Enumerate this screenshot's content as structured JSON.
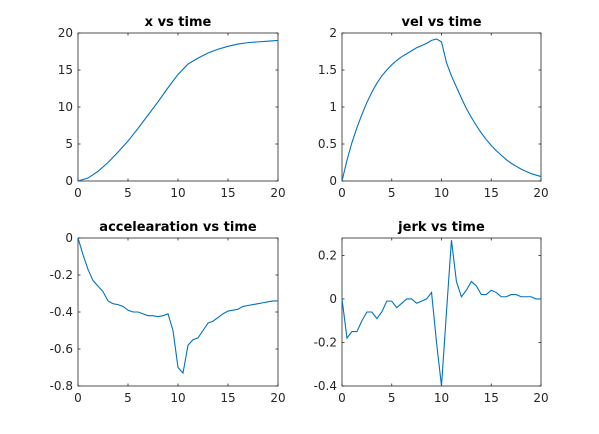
{
  "figure": {
    "background": "#ffffff"
  },
  "chart_data": [
    {
      "type": "line",
      "title": "x vs time",
      "xlabel": "",
      "ylabel": "",
      "xlim": [
        0,
        20
      ],
      "ylim": [
        0,
        20
      ],
      "xticks": [
        0,
        5,
        10,
        15,
        20
      ],
      "xtick_labels": [
        "0",
        "5",
        "10",
        "15",
        "20"
      ],
      "yticks": [
        0,
        5,
        10,
        15,
        20
      ],
      "ytick_labels": [
        "0",
        "5",
        "10",
        "15",
        "20"
      ],
      "grid": false,
      "color": "#0072bd",
      "series": [
        {
          "x": [
            0,
            1,
            2,
            3,
            4,
            5,
            6,
            7,
            8,
            9,
            10,
            11,
            12,
            13,
            14,
            15,
            16,
            17,
            18,
            19,
            20
          ],
          "y": [
            0,
            0.4,
            1.3,
            2.5,
            3.9,
            5.4,
            7.1,
            8.9,
            10.7,
            12.6,
            14.4,
            15.8,
            16.6,
            17.3,
            17.8,
            18.2,
            18.5,
            18.7,
            18.8,
            18.9,
            19.0
          ]
        }
      ]
    },
    {
      "type": "line",
      "title": "vel vs time",
      "xlabel": "",
      "ylabel": "",
      "xlim": [
        0,
        20
      ],
      "ylim": [
        0,
        2
      ],
      "xticks": [
        0,
        5,
        10,
        15,
        20
      ],
      "xtick_labels": [
        "0",
        "5",
        "10",
        "15",
        "20"
      ],
      "yticks": [
        0,
        0.5,
        1,
        1.5,
        2
      ],
      "ytick_labels": [
        "0",
        "0.5",
        "1",
        "1.5",
        "2"
      ],
      "grid": false,
      "color": "#0072bd",
      "series": [
        {
          "x": [
            0,
            0.5,
            1,
            1.5,
            2,
            2.5,
            3,
            3.5,
            4,
            4.5,
            5,
            5.5,
            6,
            6.5,
            7,
            7.5,
            8,
            8.5,
            9,
            9.5,
            10,
            10.5,
            11,
            11.5,
            12,
            12.5,
            13,
            13.5,
            14,
            14.5,
            15,
            15.5,
            16,
            16.5,
            17,
            17.5,
            18,
            18.5,
            19,
            19.5,
            20
          ],
          "y": [
            0,
            0.28,
            0.52,
            0.72,
            0.9,
            1.06,
            1.2,
            1.32,
            1.42,
            1.5,
            1.57,
            1.63,
            1.68,
            1.72,
            1.76,
            1.8,
            1.83,
            1.86,
            1.9,
            1.92,
            1.88,
            1.6,
            1.42,
            1.27,
            1.12,
            0.98,
            0.86,
            0.75,
            0.65,
            0.56,
            0.48,
            0.41,
            0.35,
            0.29,
            0.24,
            0.2,
            0.16,
            0.13,
            0.1,
            0.08,
            0.06
          ]
        }
      ]
    },
    {
      "type": "line",
      "title": "accelearation vs time",
      "xlabel": "",
      "ylabel": "",
      "xlim": [
        0,
        20
      ],
      "ylim": [
        -0.8,
        0
      ],
      "xticks": [
        0,
        5,
        10,
        15,
        20
      ],
      "xtick_labels": [
        "0",
        "5",
        "10",
        "15",
        "20"
      ],
      "yticks": [
        -0.8,
        -0.6,
        -0.4,
        -0.2,
        0
      ],
      "ytick_labels": [
        "-0.8",
        "-0.6",
        "-0.4",
        "-0.2",
        "0"
      ],
      "grid": false,
      "color": "#0072bd",
      "series": [
        {
          "x": [
            0,
            0.5,
            1,
            1.5,
            2,
            2.5,
            3,
            3.5,
            4,
            4.5,
            5,
            5.5,
            6,
            6.5,
            7,
            7.5,
            8,
            8.5,
            9,
            9.5,
            10,
            10.5,
            11,
            11.5,
            12,
            12.5,
            13,
            13.5,
            14,
            14.5,
            15,
            15.5,
            16,
            16.5,
            17,
            17.5,
            18,
            18.5,
            19,
            19.5,
            20
          ],
          "y": [
            0,
            -0.09,
            -0.17,
            -0.23,
            -0.26,
            -0.29,
            -0.34,
            -0.355,
            -0.36,
            -0.37,
            -0.39,
            -0.4,
            -0.4,
            -0.41,
            -0.42,
            -0.42,
            -0.425,
            -0.42,
            -0.41,
            -0.5,
            -0.7,
            -0.73,
            -0.58,
            -0.55,
            -0.54,
            -0.5,
            -0.46,
            -0.45,
            -0.43,
            -0.41,
            -0.395,
            -0.39,
            -0.385,
            -0.37,
            -0.365,
            -0.36,
            -0.355,
            -0.35,
            -0.345,
            -0.34,
            -0.34
          ]
        }
      ]
    },
    {
      "type": "line",
      "title": "jerk vs time",
      "xlabel": "",
      "ylabel": "",
      "xlim": [
        0,
        20
      ],
      "ylim": [
        -0.4,
        0.28
      ],
      "xticks": [
        0,
        5,
        10,
        15,
        20
      ],
      "xtick_labels": [
        "0",
        "5",
        "10",
        "15",
        "20"
      ],
      "yticks": [
        -0.4,
        -0.2,
        0,
        0.2
      ],
      "ytick_labels": [
        "-0.4",
        "-0.2",
        "0",
        "0.2"
      ],
      "grid": false,
      "color": "#0072bd",
      "series": [
        {
          "x": [
            0,
            0.5,
            1,
            1.5,
            2,
            2.5,
            3,
            3.5,
            4,
            4.5,
            5,
            5.5,
            6,
            6.5,
            7,
            7.5,
            8,
            8.5,
            9,
            9.5,
            10,
            10.5,
            11,
            11.5,
            12,
            12.5,
            13,
            13.5,
            14,
            14.5,
            15,
            15.5,
            16,
            16.5,
            17,
            17.5,
            18,
            18.5,
            19,
            19.5,
            20
          ],
          "y": [
            0,
            -0.18,
            -0.15,
            -0.15,
            -0.1,
            -0.06,
            -0.06,
            -0.09,
            -0.06,
            -0.01,
            -0.01,
            -0.04,
            -0.02,
            0,
            0,
            -0.02,
            -0.01,
            0,
            0.03,
            -0.2,
            -0.4,
            -0.06,
            0.27,
            0.08,
            0.01,
            0.04,
            0.08,
            0.06,
            0.02,
            0.02,
            0.04,
            0.03,
            0.01,
            0.01,
            0.02,
            0.02,
            0.01,
            0.01,
            0.01,
            0,
            0
          ]
        }
      ]
    }
  ]
}
